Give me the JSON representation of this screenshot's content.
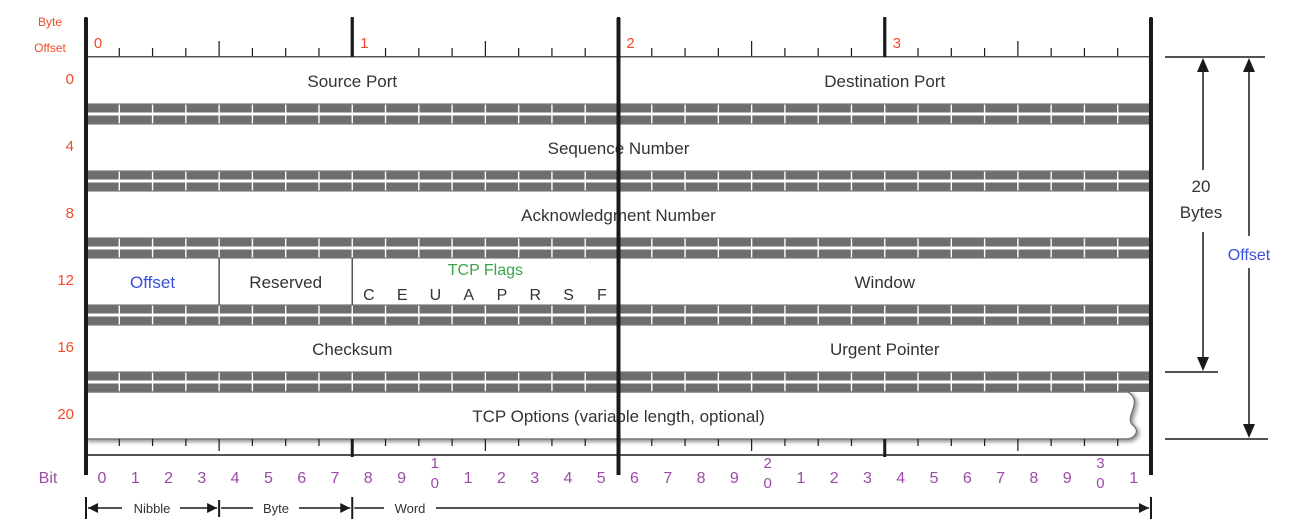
{
  "header": {
    "byte_offset_label": [
      "Byte",
      "Offset"
    ],
    "byte_numbers": [
      "0",
      "1",
      "2",
      "3"
    ]
  },
  "rows": [
    {
      "offset": "0",
      "fields": [
        {
          "label": "Source Port",
          "bits": 16
        },
        {
          "label": "Destination Port",
          "bits": 16
        }
      ]
    },
    {
      "offset": "4",
      "fields": [
        {
          "label": "Sequence Number",
          "bits": 32
        }
      ]
    },
    {
      "offset": "8",
      "fields": [
        {
          "label": "Acknowledgment Number",
          "bits": 32
        }
      ]
    },
    {
      "offset": "12",
      "fields": [
        {
          "label": "Offset",
          "bits": 4,
          "color": "#3a4fd8"
        },
        {
          "label": "Reserved",
          "bits": 4
        },
        {
          "label": "TCP Flags",
          "bits": 8,
          "color": "#3aa548",
          "flags": [
            "C",
            "E",
            "U",
            "A",
            "P",
            "R",
            "S",
            "F"
          ]
        },
        {
          "label": "Window",
          "bits": 16
        }
      ]
    },
    {
      "offset": "16",
      "fields": [
        {
          "label": "Checksum",
          "bits": 16
        },
        {
          "label": "Urgent Pointer",
          "bits": 16
        }
      ]
    },
    {
      "offset": "20",
      "fields": [
        {
          "label": "TCP Options (variable length, optional)",
          "bits": 32,
          "variable": true
        }
      ]
    }
  ],
  "right": {
    "twenty_bytes": [
      "20",
      "Bytes"
    ],
    "offset_label": "Offset"
  },
  "bits": {
    "label": "Bit",
    "numbers": [
      "0",
      "1",
      "2",
      "3",
      "4",
      "5",
      "6",
      "7",
      "8",
      "9",
      "10",
      "1",
      "2",
      "3",
      "4",
      "5",
      "6",
      "7",
      "8",
      "9",
      "20",
      "1",
      "2",
      "3",
      "4",
      "5",
      "6",
      "7",
      "8",
      "9",
      "30",
      "1"
    ]
  },
  "scale": [
    "Nibble",
    "Byte",
    "Word"
  ],
  "colors": {
    "offset_numbers": "#f04a2a",
    "bit_numbers": "#9c4aa8",
    "blue": "#3a4fd8",
    "green": "#3aa548",
    "field_text": "#333333",
    "row_fill": "#ffffff",
    "separator_fill": "#6e6e6e",
    "thick_line": "#1a1a1a"
  }
}
